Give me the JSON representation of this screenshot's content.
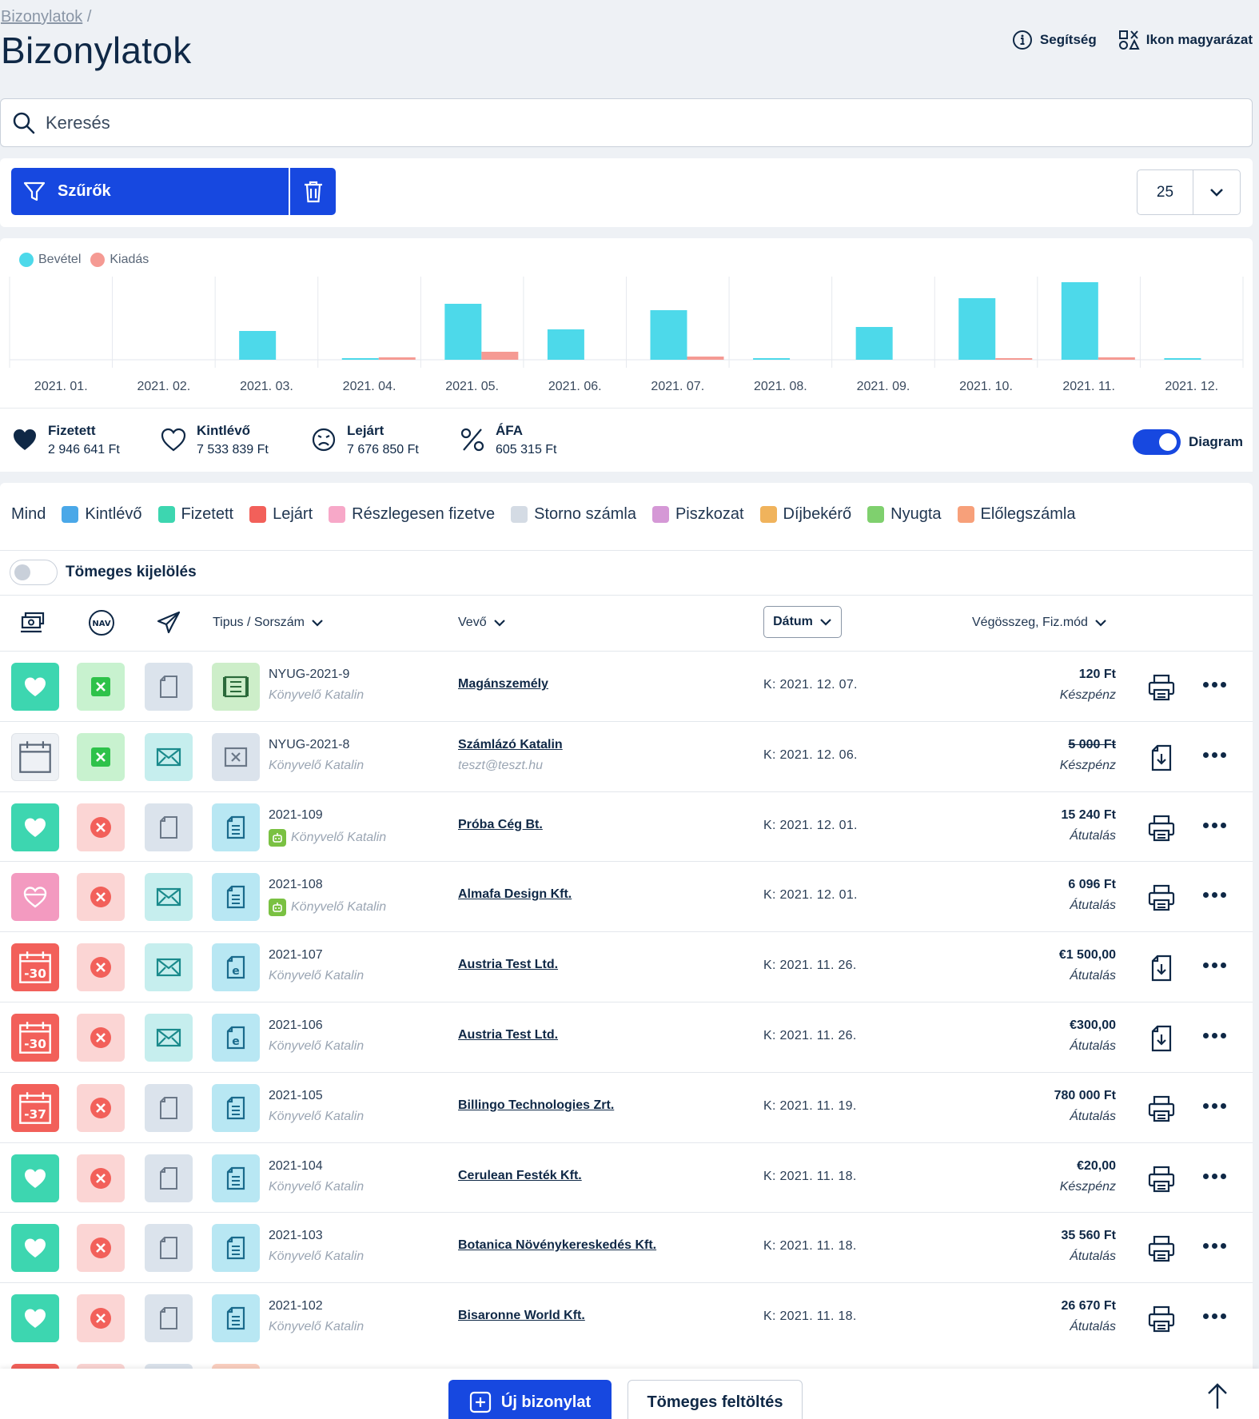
{
  "breadcrumb": {
    "link": "Bizonylatok",
    "sep": "/"
  },
  "page_title": "Bizonylatok",
  "top_links": {
    "help": "Segítség",
    "icons": "Ikon magyarázat"
  },
  "search": {
    "placeholder": "Keresés"
  },
  "filters": {
    "label": "Szűrők",
    "per_page": "25"
  },
  "chart_data": {
    "type": "bar",
    "categories": [
      "2021. 01.",
      "2021. 02.",
      "2021. 03.",
      "2021. 04.",
      "2021. 05.",
      "2021. 06.",
      "2021. 07.",
      "2021. 08.",
      "2021. 09.",
      "2021. 10.",
      "2021. 11.",
      "2021. 12."
    ],
    "series": [
      {
        "name": "Bevétel",
        "color": "#4dd9ea",
        "values": [
          0,
          0,
          36,
          1,
          70,
          38,
          62,
          1,
          41,
          77,
          97,
          1
        ]
      },
      {
        "name": "Kiadás",
        "color": "#f59a93",
        "values": [
          0,
          0,
          0,
          3,
          10,
          0,
          4,
          0,
          0,
          1,
          3,
          0
        ]
      }
    ],
    "ylim": [
      0,
      100
    ],
    "grid": "vertical",
    "legend": "top-left"
  },
  "summary": {
    "paid": {
      "label": "Fizetett",
      "amount": "2 946 641 Ft"
    },
    "outstanding": {
      "label": "Kintlévő",
      "amount": "7 533 839 Ft"
    },
    "overdue": {
      "label": "Lejárt",
      "amount": "7 676 850 Ft"
    },
    "vat": {
      "label": "ÁFA",
      "amount": "605 315 Ft"
    },
    "diagram": "Diagram"
  },
  "status_filters": [
    {
      "label": "Mind",
      "color": ""
    },
    {
      "label": "Kintlévő",
      "color": "#4aa8e8"
    },
    {
      "label": "Fizetett",
      "color": "#3dd6b0"
    },
    {
      "label": "Lejárt",
      "color": "#f2605a"
    },
    {
      "label": "Részlegesen fizetve",
      "color": "#f7a8c8"
    },
    {
      "label": "Storno számla",
      "color": "#d4dbe4"
    },
    {
      "label": "Piszkozat",
      "color": "#d598d6"
    },
    {
      "label": "Díjbekérő",
      "color": "#f0b35c"
    },
    {
      "label": "Nyugta",
      "color": "#7fd06e"
    },
    {
      "label": "Előlegszámla",
      "color": "#f7a07a"
    }
  ],
  "bulk_select": "Tömeges kijelölés",
  "columns": {
    "type": "Tipus / Sorszám",
    "buyer": "Vevő",
    "date": "Dátum",
    "total": "Végösszeg, Fiz.mód"
  },
  "rows": [
    {
      "no": "NYUG-2021-9",
      "by": "Könyvelő Katalin",
      "buyer": "Magánszemély",
      "email": "",
      "date": "K: 2021. 12. 07.",
      "amount": "120 Ft",
      "pay": "Készpénz"
    },
    {
      "no": "NYUG-2021-8",
      "by": "Könyvelő Katalin",
      "buyer": "Számlázó Katalin",
      "email": "teszt@teszt.hu",
      "date": "K: 2021. 12. 06.",
      "amount": "5 000 Ft",
      "pay": "Készpénz"
    },
    {
      "no": "2021-109",
      "by": "Könyvelő Katalin",
      "buyer": "Próba Cég Bt.",
      "email": "",
      "date": "K: 2021. 12. 01.",
      "amount": "15 240 Ft",
      "pay": "Átutalás"
    },
    {
      "no": "2021-108",
      "by": "Könyvelő Katalin",
      "buyer": "Almafa Design Kft.",
      "email": "",
      "date": "K: 2021. 12. 01.",
      "amount": "6 096 Ft",
      "pay": "Átutalás"
    },
    {
      "no": "2021-107",
      "by": "Könyvelő Katalin",
      "buyer": "Austria Test Ltd.",
      "email": "",
      "date": "K: 2021. 11. 26.",
      "amount": "€1 500,00",
      "pay": "Átutalás",
      "days": "-30"
    },
    {
      "no": "2021-106",
      "by": "Könyvelő Katalin",
      "buyer": "Austria Test Ltd.",
      "email": "",
      "date": "K: 2021. 11. 26.",
      "amount": "€300,00",
      "pay": "Átutalás",
      "days": "-30"
    },
    {
      "no": "2021-105",
      "by": "Könyvelő Katalin",
      "buyer": "Billingo Technologies Zrt.",
      "email": "",
      "date": "K: 2021. 11. 19.",
      "amount": "780 000 Ft",
      "pay": "Átutalás",
      "days": "-37"
    },
    {
      "no": "2021-104",
      "by": "Könyvelő Katalin",
      "buyer": "Cerulean Festék Kft.",
      "email": "",
      "date": "K: 2021. 11. 18.",
      "amount": "€20,00",
      "pay": "Készpénz"
    },
    {
      "no": "2021-103",
      "by": "Könyvelő Katalin",
      "buyer": "Botanica Növénykereskedés Kft.",
      "email": "",
      "date": "K: 2021. 11. 18.",
      "amount": "35 560 Ft",
      "pay": "Átutalás"
    },
    {
      "no": "2021-102",
      "by": "Könyvelő Katalin",
      "buyer": "Bisaronne World Kft.",
      "email": "",
      "date": "K: 2021. 11. 18.",
      "amount": "26 670 Ft",
      "pay": "Átutalás"
    }
  ],
  "bottom": {
    "new": "Új bizonylat",
    "upload": "Tömeges feltöltés"
  }
}
